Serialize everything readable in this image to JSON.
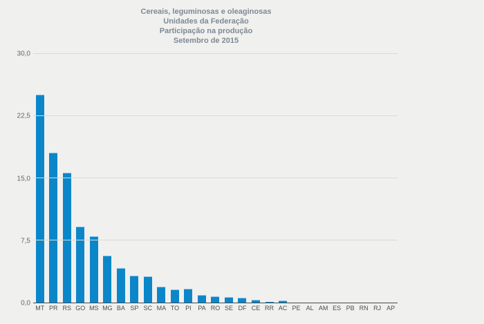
{
  "title": {
    "lines": [
      "Cereais, leguminosas e oleaginosas",
      "Unidades da Federação",
      "Participação na produção",
      "Setembro de 2015"
    ]
  },
  "colors": {
    "background": "#f0f0ef",
    "bar": "#0b87c9",
    "bar_top_highlight": "#8ac4e4",
    "title_text": "#7e8a94",
    "axis_line": "#45494d",
    "grid_line": "#d9d9d9",
    "y_tick_text": "#666666",
    "x_tick_text": "#4d4d4d"
  },
  "chart_data": {
    "type": "bar",
    "title": "Cereais, leguminosas e oleaginosas",
    "subtitle_lines": [
      "Unidades da Federação",
      "Participação na produção",
      "Setembro de 2015"
    ],
    "categories": [
      "MT",
      "PR",
      "RS",
      "GO",
      "MS",
      "MG",
      "BA",
      "SP",
      "SC",
      "MA",
      "TO",
      "PI",
      "PA",
      "RO",
      "SE",
      "DF",
      "CE",
      "RR",
      "AC",
      "PE",
      "AL",
      "AM",
      "ES",
      "PB",
      "RN",
      "RJ",
      "AP"
    ],
    "values": [
      25.0,
      18.0,
      15.6,
      9.1,
      7.9,
      5.6,
      4.1,
      3.2,
      3.1,
      1.8,
      1.5,
      1.6,
      0.85,
      0.65,
      0.55,
      0.5,
      0.25,
      0.1,
      0.15,
      0,
      0,
      0,
      0,
      0,
      0,
      0,
      0
    ],
    "xlabel": "",
    "ylabel": "",
    "ylim": [
      0,
      30
    ],
    "yticks": [
      0,
      7.5,
      15,
      22.5,
      30
    ],
    "ytick_labels": [
      "0,0",
      "7,5",
      "15,0",
      "22,5",
      "30,0"
    ],
    "grid": true,
    "legend": false,
    "bar_color": "#0b87c9"
  }
}
